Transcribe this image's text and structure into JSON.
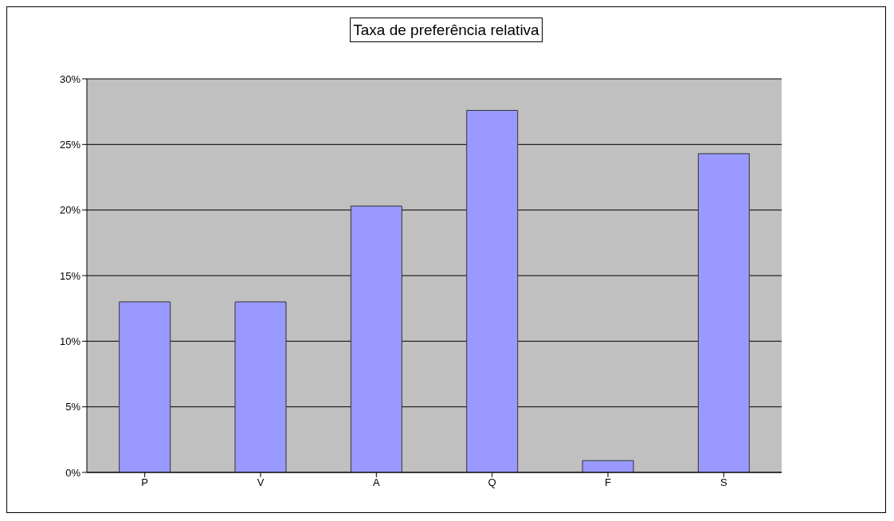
{
  "chart_data": {
    "type": "bar",
    "title": "Taxa de preferência relativa",
    "categories": [
      "P",
      "V",
      "A",
      "Q",
      "F",
      "S"
    ],
    "values": [
      0.13,
      0.13,
      0.203,
      0.276,
      0.009,
      0.243
    ],
    "color": "#9999ff",
    "ylim": [
      0,
      0.3
    ],
    "yticks": [
      {
        "value": 0,
        "label": "0%"
      },
      {
        "value": 0.05,
        "label": "5%"
      },
      {
        "value": 0.1,
        "label": "10%"
      },
      {
        "value": 0.15,
        "label": "15%"
      },
      {
        "value": 0.2,
        "label": "20%"
      },
      {
        "value": 0.25,
        "label": "25%"
      },
      {
        "value": 0.3,
        "label": "30%"
      }
    ],
    "grid": "y"
  }
}
